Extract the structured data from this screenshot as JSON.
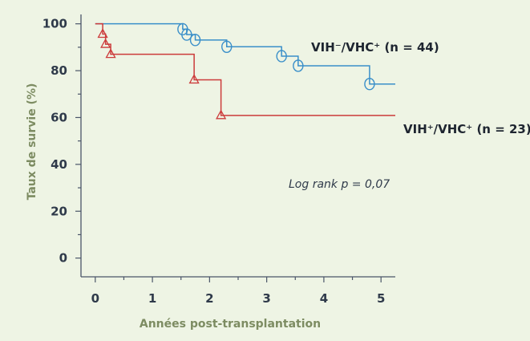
{
  "chart_data": {
    "type": "line",
    "subtype": "kaplan-meier-step",
    "title": "",
    "xlabel": "Années post-transplantation",
    "ylabel": "Taux de survie (%)",
    "xlim": [
      -0.25,
      5.25
    ],
    "ylim": [
      -8,
      104
    ],
    "x_ticks": [
      0,
      1,
      2,
      3,
      4,
      5
    ],
    "y_ticks": [
      0,
      20,
      40,
      60,
      80,
      100
    ],
    "x_tick_labels": [
      "0",
      "1",
      "2",
      "3",
      "4",
      "5"
    ],
    "y_tick_labels": [
      "0",
      "20",
      "40",
      "60",
      "80",
      "100"
    ],
    "grid": false,
    "annotation": "Log rank p = 0,07",
    "series": [
      {
        "name": "VIH⁻/VHC⁺ (n = 44)",
        "color": "#3a8fc9",
        "marker": "circle",
        "steps": [
          [
            0,
            100
          ],
          [
            1.53,
            97.7
          ],
          [
            1.6,
            95.4
          ],
          [
            1.75,
            93.1
          ],
          [
            2.3,
            90.2
          ],
          [
            3.26,
            86.2
          ],
          [
            3.55,
            82.1
          ],
          [
            4.8,
            74.3
          ],
          [
            5.25,
            74.3
          ]
        ],
        "censored": [
          [
            1.53,
            97.7
          ],
          [
            1.6,
            95.4
          ],
          [
            1.75,
            93.1
          ],
          [
            2.3,
            90.2
          ],
          [
            3.26,
            86.2
          ],
          [
            3.55,
            82.1
          ],
          [
            4.8,
            74.3
          ]
        ]
      },
      {
        "name": "VIH⁺/VHC⁺ (n = 23)",
        "color": "#cc3b3b",
        "marker": "triangle",
        "steps": [
          [
            0,
            100
          ],
          [
            0.13,
            95.6
          ],
          [
            0.18,
            91.3
          ],
          [
            0.27,
            87
          ],
          [
            1.73,
            76.1
          ],
          [
            2.2,
            60.9
          ],
          [
            5.25,
            60.9
          ]
        ],
        "censored": [
          [
            0.13,
            95.6
          ],
          [
            0.18,
            91.3
          ],
          [
            0.27,
            87
          ],
          [
            1.73,
            76.1
          ],
          [
            2.2,
            60.9
          ]
        ]
      }
    ]
  }
}
